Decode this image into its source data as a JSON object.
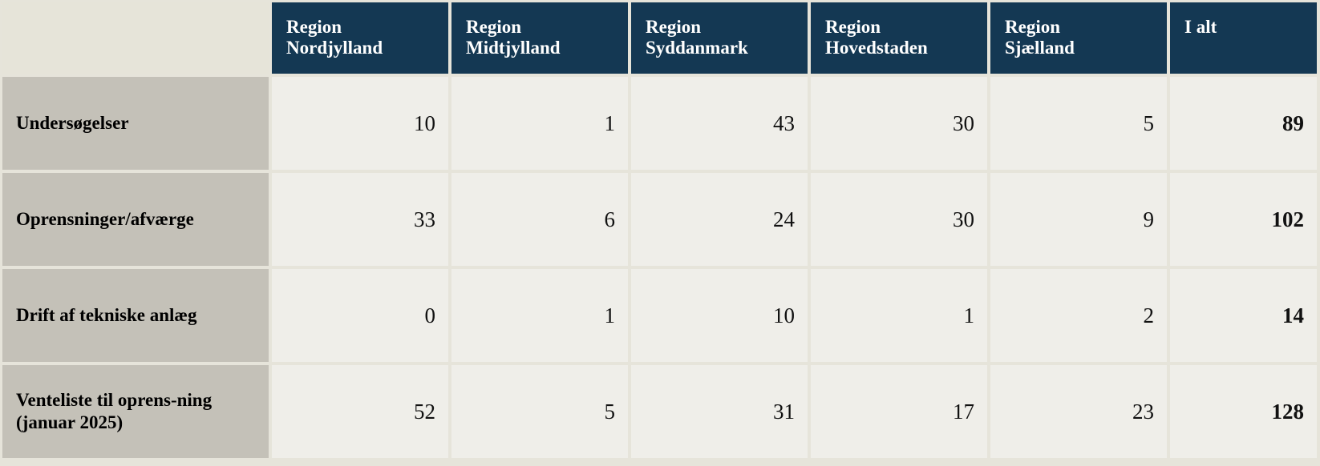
{
  "table": {
    "columns": [
      "Region Nordjylland",
      "Region Midtjylland",
      "Region Syddanmark",
      "Region Hovedstaden",
      "Region Sjælland",
      "I alt"
    ],
    "rows": [
      {
        "label": "Undersøgelser",
        "values": [
          10,
          1,
          43,
          30,
          5
        ],
        "total": 89
      },
      {
        "label": "Oprensninger/afværge",
        "values": [
          33,
          6,
          24,
          30,
          9
        ],
        "total": 102
      },
      {
        "label": "Drift af tekniske anlæg",
        "values": [
          0,
          1,
          10,
          1,
          2
        ],
        "total": 14
      },
      {
        "label": "Venteliste til oprens-ning (januar 2025)",
        "values": [
          52,
          5,
          31,
          17,
          23
        ],
        "total": 128
      }
    ]
  }
}
